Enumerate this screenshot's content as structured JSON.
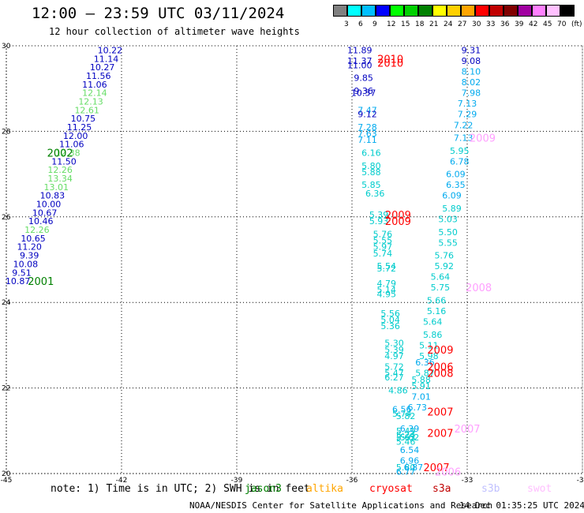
{
  "header": {
    "title": "12:00 – 23:59 UTC 03/11/2024",
    "subtitle": "12 hour collection of altimeter wave heights"
  },
  "colorbar": {
    "labels": [
      "3",
      "6",
      "9",
      "12",
      "15",
      "18",
      "21",
      "24",
      "27",
      "30",
      "33",
      "36",
      "39",
      "42",
      "45",
      "70",
      "(ft)"
    ],
    "colors": [
      "#808080",
      "#00ffff",
      "#00bfff",
      "#0000ff",
      "#00ff00",
      "#00d000",
      "#008000",
      "#ffff00",
      "#ffd000",
      "#ffa500",
      "#ff0000",
      "#c00000",
      "#800000",
      "#a000a0",
      "#ff80ff",
      "#ffc0ff",
      "#000000"
    ]
  },
  "footer": {
    "note": "note: 1) Time is in UTC; 2) SWH is in feet",
    "satellites": [
      {
        "name": "jason3",
        "color": "#008000"
      },
      {
        "name": "altika",
        "color": "#ffa500"
      },
      {
        "name": "cryosat",
        "color": "#ff0000"
      },
      {
        "name": "s3a",
        "color": "#c00000"
      },
      {
        "name": "s3b",
        "color": "#c0c0ff"
      },
      {
        "name": "swot",
        "color": "#ffc0ff"
      }
    ],
    "credit": "NOAA/NESDIS Center for Satellite Applications and Research",
    "created": "14 Dec 01:35:25 UTC 2024"
  },
  "chart_data": {
    "type": "scatter",
    "xlim": [
      -45,
      -30
    ],
    "ylim": [
      20,
      30
    ],
    "xticks": [
      "-45",
      "-42",
      "-39",
      "-36",
      "-33",
      "-30"
    ],
    "yticks": [
      "20",
      "22",
      "24",
      "26",
      "28",
      "30"
    ],
    "grid": true,
    "points": [
      {
        "x": -42.3,
        "y": 29.9,
        "v": "10.22",
        "c": "#0000c0"
      },
      {
        "x": -42.4,
        "y": 29.7,
        "v": "11.14",
        "c": "#0000c0"
      },
      {
        "x": -42.5,
        "y": 29.5,
        "v": "10.27",
        "c": "#0000c0"
      },
      {
        "x": -42.6,
        "y": 29.3,
        "v": "11.56",
        "c": "#0000c0"
      },
      {
        "x": -42.7,
        "y": 29.1,
        "v": "11.06",
        "c": "#0000c0"
      },
      {
        "x": -42.7,
        "y": 28.9,
        "v": "12.14",
        "c": "#66dd66"
      },
      {
        "x": -42.8,
        "y": 28.7,
        "v": "12.13",
        "c": "#66dd66"
      },
      {
        "x": -42.9,
        "y": 28.5,
        "v": "12.61",
        "c": "#66dd66"
      },
      {
        "x": -43.0,
        "y": 28.3,
        "v": "10.75",
        "c": "#0000c0"
      },
      {
        "x": -43.1,
        "y": 28.1,
        "v": "11.25",
        "c": "#0000c0"
      },
      {
        "x": -43.2,
        "y": 27.9,
        "v": "12.00",
        "c": "#0000c0"
      },
      {
        "x": -43.3,
        "y": 27.7,
        "v": "11.06",
        "c": "#0000c0"
      },
      {
        "x": -43.4,
        "y": 27.5,
        "v": "12.38",
        "c": "#66dd66"
      },
      {
        "x": -43.5,
        "y": 27.3,
        "v": "11.50",
        "c": "#0000c0"
      },
      {
        "x": -43.6,
        "y": 27.1,
        "v": "12.26",
        "c": "#66dd66"
      },
      {
        "x": -43.6,
        "y": 26.9,
        "v": "13.34",
        "c": "#66dd66"
      },
      {
        "x": -43.7,
        "y": 26.7,
        "v": "13.01",
        "c": "#66dd66"
      },
      {
        "x": -43.8,
        "y": 26.5,
        "v": "10.83",
        "c": "#0000c0"
      },
      {
        "x": -43.9,
        "y": 26.3,
        "v": "10.00",
        "c": "#0000c0"
      },
      {
        "x": -44.0,
        "y": 26.1,
        "v": "10.67",
        "c": "#0000c0"
      },
      {
        "x": -44.1,
        "y": 25.9,
        "v": "10.46",
        "c": "#0000c0"
      },
      {
        "x": -44.2,
        "y": 25.7,
        "v": "12.26",
        "c": "#66dd66"
      },
      {
        "x": -44.3,
        "y": 25.5,
        "v": "10.65",
        "c": "#0000c0"
      },
      {
        "x": -44.4,
        "y": 25.3,
        "v": "11.20",
        "c": "#0000c0"
      },
      {
        "x": -44.4,
        "y": 25.1,
        "v": "9.39",
        "c": "#0000c0"
      },
      {
        "x": -44.5,
        "y": 24.9,
        "v": "10.08",
        "c": "#0000c0"
      },
      {
        "x": -44.6,
        "y": 24.7,
        "v": "9.51",
        "c": "#0000c0"
      },
      {
        "x": -44.7,
        "y": 24.5,
        "v": "10.87",
        "c": "#0000c0"
      },
      {
        "x": -35.8,
        "y": 29.9,
        "v": "11.89",
        "c": "#0000c0"
      },
      {
        "x": -35.8,
        "y": 29.65,
        "v": "11.37",
        "c": "#0000c0"
      },
      {
        "x": -35.8,
        "y": 29.55,
        "v": "11.00",
        "c": "#0000c0"
      },
      {
        "x": -35.7,
        "y": 29.25,
        "v": "9.85",
        "c": "#0000c0"
      },
      {
        "x": -35.7,
        "y": 28.95,
        "v": "9.36",
        "c": "#0000c0"
      },
      {
        "x": -35.7,
        "y": 28.9,
        "v": "10.57",
        "c": "#0000c0"
      },
      {
        "x": -35.6,
        "y": 28.5,
        "v": "7.47",
        "c": "#00aaee"
      },
      {
        "x": -35.6,
        "y": 28.4,
        "v": "9.12",
        "c": "#0000c0"
      },
      {
        "x": -35.6,
        "y": 28.1,
        "v": "7.28",
        "c": "#00aaee"
      },
      {
        "x": -35.6,
        "y": 27.95,
        "v": "7.63",
        "c": "#00aaee"
      },
      {
        "x": -35.6,
        "y": 27.8,
        "v": "7.11",
        "c": "#00aaee"
      },
      {
        "x": -35.5,
        "y": 27.5,
        "v": "6.16",
        "c": "#00cccc"
      },
      {
        "x": -35.5,
        "y": 27.2,
        "v": "5.80",
        "c": "#00cccc"
      },
      {
        "x": -35.5,
        "y": 27.05,
        "v": "5.88",
        "c": "#00cccc"
      },
      {
        "x": -35.5,
        "y": 26.75,
        "v": "5.85",
        "c": "#00cccc"
      },
      {
        "x": -35.4,
        "y": 26.55,
        "v": "6.36",
        "c": "#00cccc"
      },
      {
        "x": -35.3,
        "y": 26.05,
        "v": "5.39",
        "c": "#00cccc"
      },
      {
        "x": -35.3,
        "y": 25.9,
        "v": "5.93",
        "c": "#00cccc"
      },
      {
        "x": -35.2,
        "y": 25.6,
        "v": "5.76",
        "c": "#00cccc"
      },
      {
        "x": -35.2,
        "y": 25.45,
        "v": "5.55",
        "c": "#00cccc"
      },
      {
        "x": -35.2,
        "y": 25.3,
        "v": "5.97",
        "c": "#00cccc"
      },
      {
        "x": -35.2,
        "y": 25.15,
        "v": "5.74",
        "c": "#00cccc"
      },
      {
        "x": -35.1,
        "y": 24.85,
        "v": "5.54",
        "c": "#00cccc"
      },
      {
        "x": -35.1,
        "y": 24.8,
        "v": "5.72",
        "c": "#00cccc"
      },
      {
        "x": -35.1,
        "y": 24.45,
        "v": "4.79",
        "c": "#00cccc"
      },
      {
        "x": -35.1,
        "y": 24.3,
        "v": "5.14",
        "c": "#00cccc"
      },
      {
        "x": -35.1,
        "y": 24.2,
        "v": "4.95",
        "c": "#00cccc"
      },
      {
        "x": -35.0,
        "y": 23.75,
        "v": "5.56",
        "c": "#00cccc"
      },
      {
        "x": -35.0,
        "y": 23.6,
        "v": "5.04",
        "c": "#00cccc"
      },
      {
        "x": -35.0,
        "y": 23.45,
        "v": "5.36",
        "c": "#00cccc"
      },
      {
        "x": -34.9,
        "y": 23.05,
        "v": "5.30",
        "c": "#00cccc"
      },
      {
        "x": -34.9,
        "y": 22.9,
        "v": "5.39",
        "c": "#00cccc"
      },
      {
        "x": -34.9,
        "y": 22.75,
        "v": "4.97",
        "c": "#00cccc"
      },
      {
        "x": -34.9,
        "y": 22.5,
        "v": "5.72",
        "c": "#00cccc"
      },
      {
        "x": -34.9,
        "y": 22.35,
        "v": "5.47",
        "c": "#00cccc"
      },
      {
        "x": -34.9,
        "y": 22.25,
        "v": "6.27",
        "c": "#00cccc"
      },
      {
        "x": -34.8,
        "y": 21.95,
        "v": "4.86",
        "c": "#00cccc"
      },
      {
        "x": -34.7,
        "y": 21.5,
        "v": "6.56",
        "c": "#00aaee"
      },
      {
        "x": -34.7,
        "y": 21.4,
        "v": "5.74",
        "c": "#00cccc"
      },
      {
        "x": -34.6,
        "y": 21.35,
        "v": "5.82",
        "c": "#00cccc"
      },
      {
        "x": -34.6,
        "y": 21.0,
        "v": "5.49",
        "c": "#00cccc"
      },
      {
        "x": -34.5,
        "y": 21.05,
        "v": "6.39",
        "c": "#00aaee"
      },
      {
        "x": -34.6,
        "y": 20.9,
        "v": "5.24",
        "c": "#00cccc"
      },
      {
        "x": -34.6,
        "y": 20.85,
        "v": "5.63",
        "c": "#00cccc"
      },
      {
        "x": -34.5,
        "y": 20.85,
        "v": "5.62",
        "c": "#00cccc"
      },
      {
        "x": -34.6,
        "y": 20.75,
        "v": "5.46",
        "c": "#00cccc"
      },
      {
        "x": -34.5,
        "y": 20.55,
        "v": "6.54",
        "c": "#00aaee"
      },
      {
        "x": -34.5,
        "y": 20.3,
        "v": "6.96",
        "c": "#00aaee"
      },
      {
        "x": -34.6,
        "y": 20.15,
        "v": "5.80",
        "c": "#00cccc"
      },
      {
        "x": -34.6,
        "y": 20.05,
        "v": "6.77",
        "c": "#00aaee"
      },
      {
        "x": -34.4,
        "y": 20.15,
        "v": "6.87",
        "c": "#00aaee"
      },
      {
        "x": -32.9,
        "y": 29.9,
        "v": "9.31",
        "c": "#0000c0"
      },
      {
        "x": -32.9,
        "y": 29.65,
        "v": "9.08",
        "c": "#0000c0"
      },
      {
        "x": -32.9,
        "y": 29.4,
        "v": "8.10",
        "c": "#00aaee"
      },
      {
        "x": -32.9,
        "y": 29.15,
        "v": "8.02",
        "c": "#00aaee"
      },
      {
        "x": -32.9,
        "y": 28.9,
        "v": "7.98",
        "c": "#00aaee"
      },
      {
        "x": -33.0,
        "y": 28.65,
        "v": "7.13",
        "c": "#00aaee"
      },
      {
        "x": -33.0,
        "y": 28.4,
        "v": "7.29",
        "c": "#00aaee"
      },
      {
        "x": -33.1,
        "y": 28.15,
        "v": "7.22",
        "c": "#00aaee"
      },
      {
        "x": -33.1,
        "y": 27.85,
        "v": "7.13",
        "c": "#00aaee"
      },
      {
        "x": -33.2,
        "y": 27.55,
        "v": "5.95",
        "c": "#00cccc"
      },
      {
        "x": -33.2,
        "y": 27.3,
        "v": "6.78",
        "c": "#00aaee"
      },
      {
        "x": -33.3,
        "y": 27.0,
        "v": "6.09",
        "c": "#00aaee"
      },
      {
        "x": -33.3,
        "y": 26.75,
        "v": "6.35",
        "c": "#00aaee"
      },
      {
        "x": -33.4,
        "y": 26.5,
        "v": "6.09",
        "c": "#00aaee"
      },
      {
        "x": -33.4,
        "y": 26.2,
        "v": "5.89",
        "c": "#00cccc"
      },
      {
        "x": -33.5,
        "y": 25.95,
        "v": "5.03",
        "c": "#00cccc"
      },
      {
        "x": -33.5,
        "y": 25.65,
        "v": "5.50",
        "c": "#00cccc"
      },
      {
        "x": -33.5,
        "y": 25.4,
        "v": "5.55",
        "c": "#00cccc"
      },
      {
        "x": -33.6,
        "y": 25.1,
        "v": "5.76",
        "c": "#00cccc"
      },
      {
        "x": -33.6,
        "y": 24.85,
        "v": "5.92",
        "c": "#00cccc"
      },
      {
        "x": -33.7,
        "y": 24.6,
        "v": "5.64",
        "c": "#00cccc"
      },
      {
        "x": -33.7,
        "y": 24.35,
        "v": "5.75",
        "c": "#00cccc"
      },
      {
        "x": -33.8,
        "y": 24.05,
        "v": "5.66",
        "c": "#00cccc"
      },
      {
        "x": -33.8,
        "y": 23.8,
        "v": "5.16",
        "c": "#00cccc"
      },
      {
        "x": -33.9,
        "y": 23.55,
        "v": "5.64",
        "c": "#00cccc"
      },
      {
        "x": -33.9,
        "y": 23.25,
        "v": "5.86",
        "c": "#00cccc"
      },
      {
        "x": -34.0,
        "y": 23.0,
        "v": "5.11",
        "c": "#00cccc"
      },
      {
        "x": -34.0,
        "y": 22.75,
        "v": "5.98",
        "c": "#00cccc"
      },
      {
        "x": -34.1,
        "y": 22.6,
        "v": "6.36",
        "c": "#00aaee"
      },
      {
        "x": -34.1,
        "y": 22.35,
        "v": "5.87",
        "c": "#00cccc"
      },
      {
        "x": -34.2,
        "y": 22.2,
        "v": "5.88",
        "c": "#00cccc"
      },
      {
        "x": -34.2,
        "y": 22.05,
        "v": "5.91",
        "c": "#00cccc"
      },
      {
        "x": -34.2,
        "y": 21.8,
        "v": "7.01",
        "c": "#00aaee"
      },
      {
        "x": -34.3,
        "y": 21.55,
        "v": "6.73",
        "c": "#00aaee"
      }
    ],
    "tracks": [
      {
        "x": -43.6,
        "y": 27.5,
        "label": "2002",
        "c": "#008000"
      },
      {
        "x": -44.1,
        "y": 24.5,
        "label": "2001",
        "c": "#008000"
      },
      {
        "x": -35.0,
        "y": 29.7,
        "label": "2010",
        "c": "#ff0000"
      },
      {
        "x": -35.0,
        "y": 29.6,
        "label": "2010",
        "c": "#ff0000"
      },
      {
        "x": -34.8,
        "y": 26.05,
        "label": "2009",
        "c": "#ff0000"
      },
      {
        "x": -34.8,
        "y": 25.9,
        "label": "2009",
        "c": "#ff0000"
      },
      {
        "x": -33.7,
        "y": 22.9,
        "label": "2009",
        "c": "#ff0000"
      },
      {
        "x": -33.7,
        "y": 22.5,
        "label": "2006",
        "c": "#ff0000"
      },
      {
        "x": -33.7,
        "y": 22.35,
        "label": "2008",
        "c": "#ff0000"
      },
      {
        "x": -33.7,
        "y": 21.45,
        "label": "2007",
        "c": "#ff0000"
      },
      {
        "x": -33.7,
        "y": 20.95,
        "label": "2007",
        "c": "#ff0000"
      },
      {
        "x": -33.8,
        "y": 20.15,
        "label": "2007",
        "c": "#ff0000"
      },
      {
        "x": -33.5,
        "y": 20.05,
        "label": "2006",
        "c": "#ffa0ff"
      },
      {
        "x": -33.0,
        "y": 21.05,
        "label": "2007",
        "c": "#ffa0ff"
      },
      {
        "x": -32.7,
        "y": 24.35,
        "label": "2008",
        "c": "#ffa0ff"
      },
      {
        "x": -32.6,
        "y": 27.85,
        "label": "2009",
        "c": "#ffa0ff"
      }
    ]
  }
}
